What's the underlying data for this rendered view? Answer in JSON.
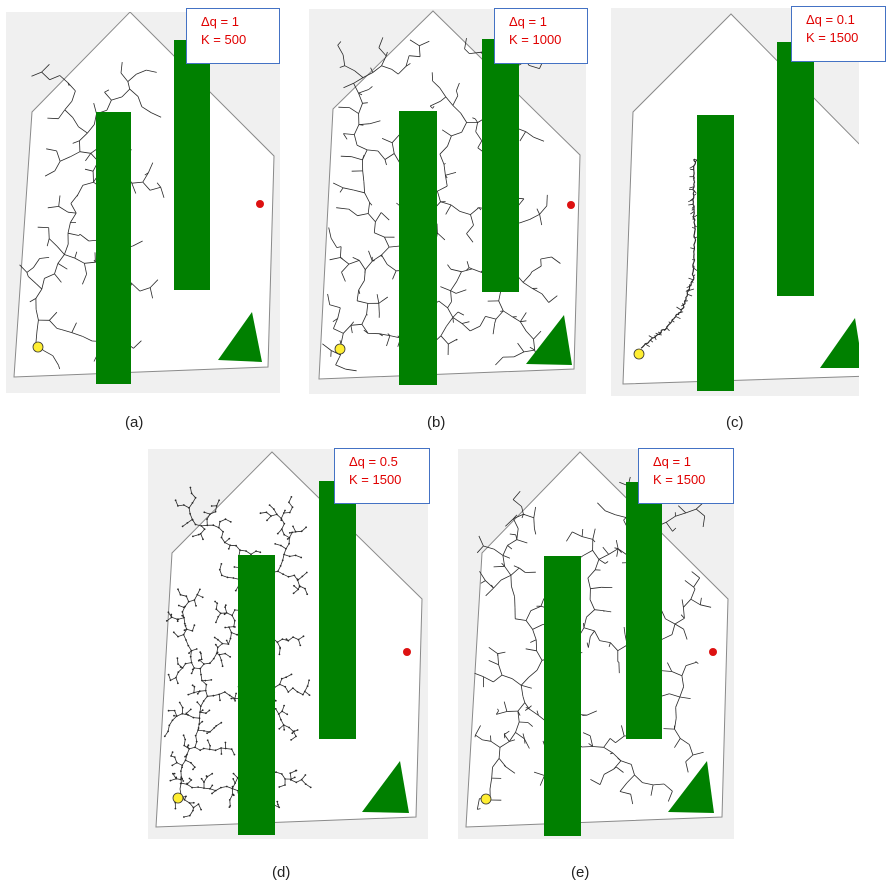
{
  "panels": [
    {
      "id": "a",
      "caption": "(a)",
      "dq_label": "Δq = 1",
      "k_label": "K = 500",
      "pattern": "sparse-coarse"
    },
    {
      "id": "b",
      "caption": "(b)",
      "dq_label": "Δq = 1",
      "k_label": "K = 1000",
      "pattern": "dense-coarse"
    },
    {
      "id": "c",
      "caption": "(c)",
      "dq_label": "Δq = 0.1",
      "k_label": "K = 1500",
      "pattern": "fine-narrow"
    },
    {
      "id": "d",
      "caption": "(d)",
      "dq_label": "Δq = 0.5",
      "k_label": "K = 1500",
      "pattern": "dense-fine"
    },
    {
      "id": "e",
      "caption": "(e)",
      "dq_label": "Δq = 1",
      "k_label": "K = 1500",
      "pattern": "dense-coarse"
    }
  ],
  "colors": {
    "obstacle": "#008000",
    "boundary": "#8a8a8a",
    "panel_bg": "#f0f0f0",
    "environment": "#ffffff",
    "tree": "#2a2a2a",
    "start": "#ffee33",
    "goal": "#dd1111",
    "param_text": "#e00000",
    "param_border": "#4472c4"
  }
}
